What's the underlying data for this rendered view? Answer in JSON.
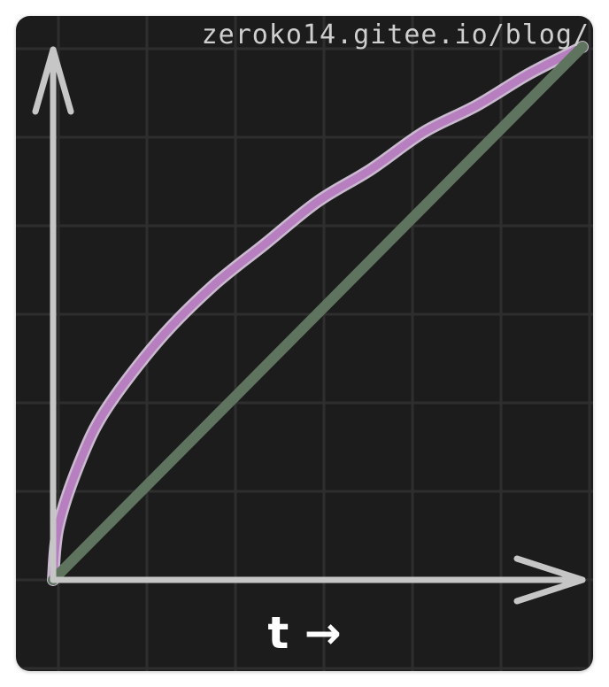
{
  "watermark": "zeroko14.gitee.io/blog/",
  "chart_data": {
    "type": "line",
    "title": "",
    "xlabel": "t →",
    "ylabel": "",
    "xlim": [
      0,
      1
    ],
    "ylim": [
      0,
      1
    ],
    "grid": true,
    "series": [
      {
        "color": "#b77fc0",
        "x": [
          0,
          0.01,
          0.05,
          0.1,
          0.2,
          0.3,
          0.4,
          0.5,
          0.6,
          0.7,
          0.8,
          0.9,
          1.0
        ],
        "y": [
          0,
          0.1,
          0.22,
          0.32,
          0.45,
          0.55,
          0.63,
          0.71,
          0.77,
          0.84,
          0.89,
          0.95,
          1.0
        ]
      },
      {
        "color": "#5f745f",
        "x": [
          0,
          1
        ],
        "y": [
          0,
          1
        ]
      }
    ],
    "colors": {
      "background": "#1c1c1c",
      "grid": "#2e2e2e",
      "axis": "#c6c6c6"
    }
  }
}
